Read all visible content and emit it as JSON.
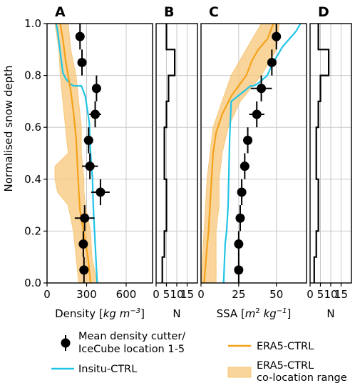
{
  "colors": {
    "era5": "#f5a21a",
    "era5_fill": "#f7c77a",
    "insitu": "#22c4e6",
    "obs": "#000000",
    "grid": "#c8c8c8"
  },
  "ylabel": "Normalised snow depth",
  "yticks": [
    "0.0",
    "0.2",
    "0.4",
    "0.6",
    "0.8",
    "1.0"
  ],
  "legend": {
    "obs": [
      "Mean density cutter/",
      "IceCube location 1-5"
    ],
    "insitu": "Insitu-CTRL",
    "era5": "ERA5-CTRL",
    "era5_range": [
      "ERA5-CTRL",
      "co-location range"
    ],
    "placement": "below"
  },
  "chart_data": [
    {
      "panel": "A",
      "type": "line",
      "xlabel_prefix": "Density [",
      "xlabel_units": [
        "kg",
        " m",
        "−3"
      ],
      "xlim": [
        0,
        800
      ],
      "ylim": [
        0,
        1
      ],
      "xticks": [
        0,
        300,
        600
      ],
      "xtick_labels": [
        "0",
        "300",
        "600"
      ],
      "grid": true,
      "observations": {
        "name": "Mean density cutter/IceCube location 1-5",
        "y": [
          0.95,
          0.85,
          0.75,
          0.65,
          0.55,
          0.45,
          0.35,
          0.25,
          0.15,
          0.05
        ],
        "x": [
          250,
          265,
          375,
          365,
          315,
          325,
          405,
          285,
          275,
          280
        ],
        "xerr": [
          15,
          20,
          30,
          45,
          35,
          60,
          70,
          75,
          30,
          35
        ],
        "yerr": [
          0.05,
          0.05,
          0.05,
          0.05,
          0.05,
          0.05,
          0.05,
          0.05,
          0.05,
          0.05
        ]
      },
      "series": [
        {
          "name": "Insitu-CTRL",
          "x": [
            70,
            80,
            90,
            100,
            110,
            120,
            140,
            170,
            200,
            260,
            290,
            320,
            330,
            345,
            350,
            360,
            370,
            380
          ],
          "y": [
            1.0,
            0.97,
            0.93,
            0.89,
            0.85,
            0.81,
            0.79,
            0.77,
            0.76,
            0.76,
            0.72,
            0.62,
            0.5,
            0.4,
            0.3,
            0.2,
            0.1,
            0.0
          ]
        },
        {
          "name": "ERA5-CTRL",
          "x": [
            100,
            120,
            140,
            160,
            180,
            200,
            220,
            230,
            240,
            250,
            270,
            290,
            310,
            320,
            330
          ],
          "y": [
            1.0,
            0.94,
            0.86,
            0.8,
            0.74,
            0.66,
            0.56,
            0.46,
            0.36,
            0.28,
            0.22,
            0.16,
            0.1,
            0.05,
            0.0
          ]
        }
      ],
      "range": {
        "name": "ERA5-CTRL co-location range",
        "y": [
          1.0,
          0.9,
          0.8,
          0.7,
          0.6,
          0.5,
          0.45,
          0.4,
          0.35,
          0.3,
          0.2,
          0.1,
          0.0
        ],
        "lo": [
          60,
          90,
          100,
          120,
          140,
          160,
          60,
          60,
          80,
          160,
          200,
          220,
          240
        ],
        "hi": [
          160,
          180,
          220,
          240,
          260,
          260,
          270,
          280,
          280,
          290,
          330,
          340,
          380
        ]
      }
    },
    {
      "panel": "B",
      "type": "line",
      "xlabel": "N",
      "xlim": [
        0,
        20
      ],
      "ylim": [
        0,
        1
      ],
      "xticks": [
        0,
        5,
        10,
        15
      ],
      "xtick_labels": [
        "0",
        "5",
        "10",
        "15"
      ],
      "grid": true,
      "series": [
        {
          "name": "N",
          "x": [
            5,
            5,
            9,
            9,
            6,
            6,
            5,
            5,
            4,
            4,
            5,
            5,
            4,
            4,
            3,
            3
          ],
          "y": [
            1.0,
            0.9,
            0.9,
            0.8,
            0.8,
            0.7,
            0.7,
            0.6,
            0.6,
            0.4,
            0.4,
            0.2,
            0.2,
            0.1,
            0.1,
            0.0
          ]
        }
      ]
    },
    {
      "panel": "C",
      "type": "line",
      "xlabel_prefix": "SSA [",
      "xlabel_units": [
        "m",
        "2",
        " kg",
        "−1"
      ],
      "xlim": [
        0,
        70
      ],
      "ylim": [
        0,
        1
      ],
      "xticks": [
        0,
        25,
        50
      ],
      "xtick_labels": [
        "0",
        "25",
        "50"
      ],
      "grid": true,
      "observations": {
        "name": "Mean density cutter/IceCube location 1-5",
        "y": [
          0.95,
          0.85,
          0.75,
          0.65,
          0.55,
          0.45,
          0.35,
          0.25,
          0.15,
          0.05
        ],
        "x": [
          50,
          47,
          40,
          37,
          31,
          29,
          27,
          26,
          25,
          25
        ],
        "xerr": [
          2,
          3,
          7,
          5,
          3,
          3,
          3,
          1,
          1,
          1
        ],
        "yerr": [
          0.05,
          0.05,
          0.05,
          0.05,
          0.05,
          0.05,
          0.05,
          0.05,
          0.05,
          0.05
        ]
      },
      "series": [
        {
          "name": "Insitu-CTRL",
          "x": [
            66,
            63,
            60,
            57,
            54,
            52,
            50,
            47,
            44,
            38,
            35,
            33,
            20,
            19,
            18,
            17,
            16,
            15
          ],
          "y": [
            1.0,
            0.97,
            0.95,
            0.93,
            0.91,
            0.89,
            0.87,
            0.84,
            0.8,
            0.77,
            0.76,
            0.76,
            0.7,
            0.56,
            0.3,
            0.2,
            0.15,
            0.0
          ]
        },
        {
          "name": "ERA5-CTRL",
          "x": [
            48,
            44,
            38,
            34,
            30,
            20,
            14,
            10,
            8,
            7,
            6,
            5,
            4,
            3,
            2
          ],
          "y": [
            1.0,
            0.94,
            0.9,
            0.86,
            0.8,
            0.72,
            0.65,
            0.58,
            0.5,
            0.4,
            0.3,
            0.2,
            0.14,
            0.07,
            0.0
          ]
        }
      ],
      "range": {
        "name": "ERA5-CTRL co-location range",
        "y": [
          1.0,
          0.9,
          0.8,
          0.7,
          0.6,
          0.5,
          0.4,
          0.3,
          0.2,
          0.1,
          0.0
        ],
        "lo": [
          40,
          30,
          20,
          14,
          8,
          6,
          4,
          3,
          2,
          1,
          0
        ],
        "hi": [
          52,
          50,
          40,
          26,
          18,
          14,
          12,
          12,
          10,
          10,
          10
        ]
      }
    },
    {
      "panel": "D",
      "type": "line",
      "xlabel": "N",
      "xlim": [
        0,
        20
      ],
      "ylim": [
        0,
        1
      ],
      "xticks": [
        0,
        5,
        10,
        15
      ],
      "xtick_labels": [
        "0",
        "5",
        "10",
        "15"
      ],
      "grid": true,
      "series": [
        {
          "name": "N",
          "x": [
            4,
            4,
            9,
            9,
            5,
            5,
            4,
            4,
            3,
            3,
            4,
            4,
            3,
            3,
            2,
            2
          ],
          "y": [
            1.0,
            0.9,
            0.9,
            0.8,
            0.8,
            0.7,
            0.7,
            0.6,
            0.6,
            0.4,
            0.4,
            0.2,
            0.2,
            0.1,
            0.1,
            0.0
          ]
        }
      ]
    }
  ]
}
